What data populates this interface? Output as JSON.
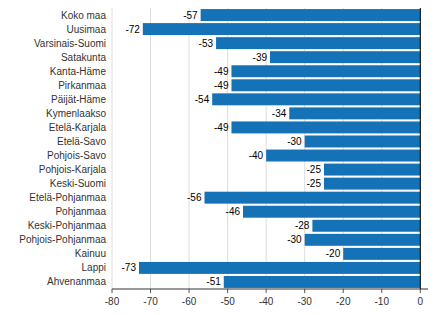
{
  "chart_data": {
    "type": "bar",
    "orientation": "horizontal",
    "categories": [
      "Koko maa",
      "Uusimaa",
      "Varsinais-Suomi",
      "Satakunta",
      "Kanta-Häme",
      "Pirkanmaa",
      "Päijät-Häme",
      "Kymenlaakso",
      "Etelä-Karjala",
      "Etelä-Savo",
      "Pohjois-Savo",
      "Pohjois-Karjala",
      "Keski-Suomi",
      "Etelä-Pohjanmaa",
      "Pohjanmaa",
      "Keski-Pohjanmaa",
      "Pohjois-Pohjanmaa",
      "Kainuu",
      "Lappi",
      "Ahvenanmaa"
    ],
    "values": [
      -57,
      -72,
      -53,
      -39,
      -49,
      -49,
      -54,
      -34,
      -49,
      -30,
      -40,
      -25,
      -25,
      -56,
      -46,
      -28,
      -30,
      -20,
      -73,
      -51
    ],
    "color": "#1572b6",
    "xlim": [
      -80,
      2
    ],
    "xticks": [
      -80,
      -70,
      -60,
      -50,
      -40,
      -30,
      -20,
      -10,
      0
    ],
    "grid": true,
    "data_labels": true
  }
}
